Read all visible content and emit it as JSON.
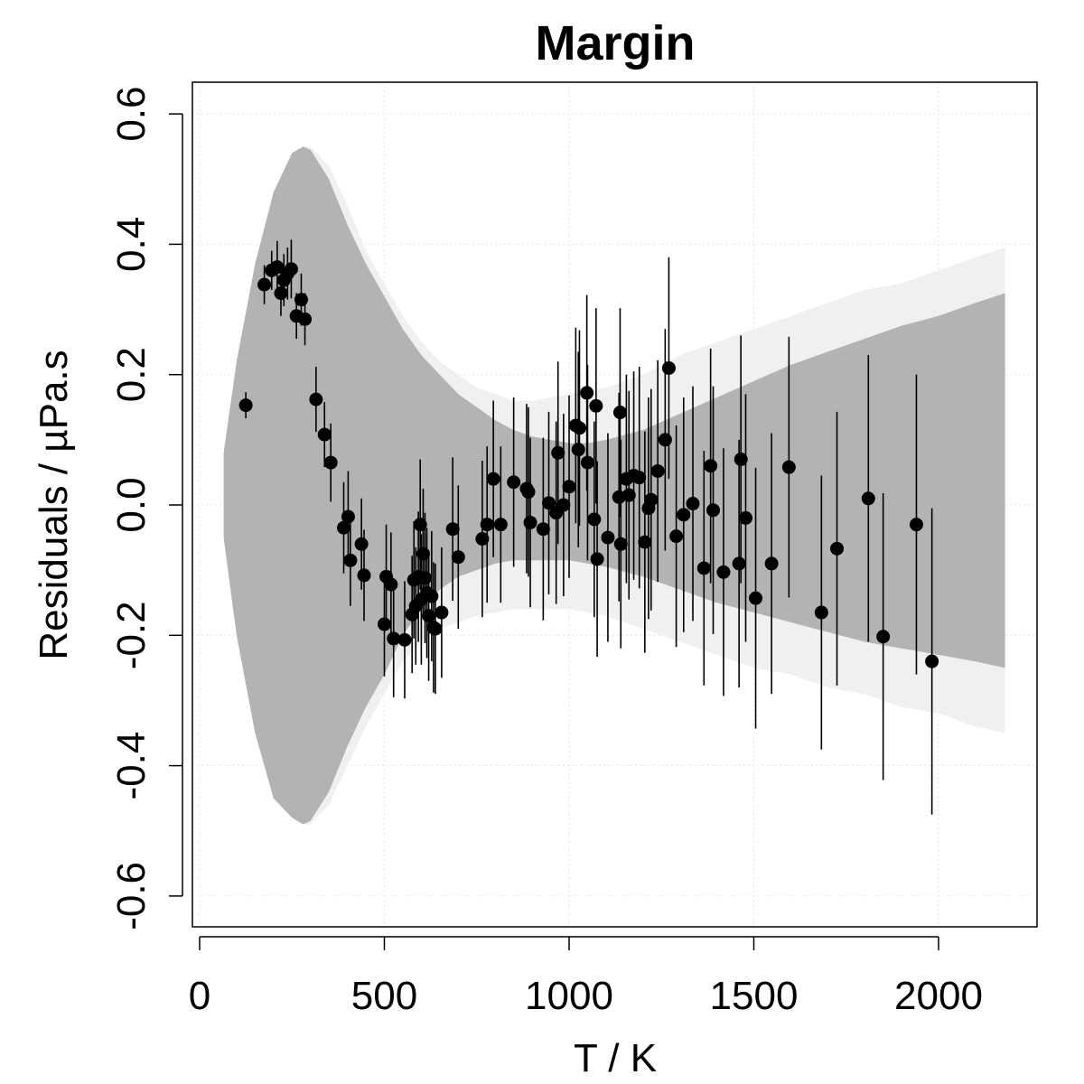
{
  "chart_data": {
    "type": "scatter",
    "title": "Margin",
    "xlabel": "T / K",
    "ylabel": "Residuals / µPa.s",
    "xlim": [
      0,
      2270
    ],
    "ylim": [
      -0.65,
      0.65
    ],
    "xticks": [
      0,
      500,
      1000,
      1500,
      2000
    ],
    "xtick_labels": [
      "0",
      "500",
      "1000",
      "1500",
      "2000"
    ],
    "yticks": [
      -0.6,
      -0.4,
      -0.2,
      0.0,
      0.2,
      0.4,
      0.6
    ],
    "ytick_labels": [
      "-0.6",
      "-0.4",
      "-0.2",
      "0.0",
      "0.2",
      "0.4",
      "0.6"
    ],
    "grid": true,
    "colors": {
      "inner_band": "#b3b3b3",
      "outer_band": "#f0f0f0",
      "points": "#000000",
      "grid": "#e6e6e6"
    },
    "bands": {
      "inner": {
        "x": [
          65,
          100,
          150,
          200,
          250,
          280,
          300,
          350,
          400,
          450,
          500,
          550,
          600,
          650,
          700,
          750,
          800,
          850,
          900,
          950,
          1000,
          1050,
          1100,
          1200,
          1300,
          1400,
          1500,
          1600,
          1700,
          1800,
          1900,
          2000,
          2100,
          2180
        ],
        "upper": [
          0.08,
          0.22,
          0.37,
          0.48,
          0.54,
          0.55,
          0.545,
          0.5,
          0.43,
          0.37,
          0.32,
          0.27,
          0.23,
          0.2,
          0.17,
          0.15,
          0.13,
          0.115,
          0.105,
          0.1,
          0.095,
          0.095,
          0.1,
          0.115,
          0.14,
          0.165,
          0.19,
          0.215,
          0.235,
          0.255,
          0.275,
          0.29,
          0.31,
          0.325
        ],
        "lower": [
          -0.05,
          -0.2,
          -0.35,
          -0.45,
          -0.48,
          -0.49,
          -0.485,
          -0.44,
          -0.37,
          -0.31,
          -0.26,
          -0.2,
          -0.16,
          -0.13,
          -0.11,
          -0.1,
          -0.09,
          -0.085,
          -0.085,
          -0.085,
          -0.085,
          -0.09,
          -0.095,
          -0.11,
          -0.13,
          -0.15,
          -0.165,
          -0.18,
          -0.195,
          -0.21,
          -0.22,
          -0.23,
          -0.24,
          -0.25
        ]
      },
      "outer": {
        "x": [
          65,
          100,
          150,
          200,
          250,
          280,
          300,
          350,
          400,
          450,
          500,
          550,
          600,
          650,
          700,
          750,
          800,
          850,
          900,
          950,
          1000,
          1050,
          1100,
          1200,
          1300,
          1400,
          1500,
          1600,
          1700,
          1800,
          1900,
          2000,
          2100,
          2180
        ],
        "upper": [
          0.08,
          0.22,
          0.37,
          0.48,
          0.54,
          0.55,
          0.55,
          0.52,
          0.46,
          0.39,
          0.34,
          0.29,
          0.25,
          0.22,
          0.2,
          0.18,
          0.17,
          0.16,
          0.16,
          0.165,
          0.17,
          0.175,
          0.18,
          0.2,
          0.23,
          0.25,
          0.27,
          0.29,
          0.31,
          0.33,
          0.34,
          0.36,
          0.38,
          0.395
        ],
        "lower": [
          -0.05,
          -0.2,
          -0.35,
          -0.45,
          -0.48,
          -0.49,
          -0.49,
          -0.46,
          -0.4,
          -0.34,
          -0.29,
          -0.24,
          -0.21,
          -0.19,
          -0.18,
          -0.17,
          -0.165,
          -0.16,
          -0.16,
          -0.16,
          -0.16,
          -0.165,
          -0.17,
          -0.19,
          -0.21,
          -0.23,
          -0.25,
          -0.26,
          -0.28,
          -0.29,
          -0.31,
          -0.32,
          -0.34,
          -0.35
        ]
      }
    },
    "points": [
      {
        "x": 125,
        "y": 0.153,
        "err": 0.02
      },
      {
        "x": 175,
        "y": 0.338,
        "err": 0.03
      },
      {
        "x": 195,
        "y": 0.36,
        "err": 0.03
      },
      {
        "x": 210,
        "y": 0.365,
        "err": 0.04
      },
      {
        "x": 220,
        "y": 0.325,
        "err": 0.035
      },
      {
        "x": 228,
        "y": 0.345,
        "err": 0.04
      },
      {
        "x": 238,
        "y": 0.355,
        "err": 0.04
      },
      {
        "x": 248,
        "y": 0.362,
        "err": 0.045
      },
      {
        "x": 262,
        "y": 0.29,
        "err": 0.035
      },
      {
        "x": 275,
        "y": 0.315,
        "err": 0.04
      },
      {
        "x": 285,
        "y": 0.285,
        "err": 0.04
      },
      {
        "x": 315,
        "y": 0.162,
        "err": 0.05
      },
      {
        "x": 338,
        "y": 0.108,
        "err": 0.05
      },
      {
        "x": 355,
        "y": 0.065,
        "err": 0.06
      },
      {
        "x": 390,
        "y": -0.035,
        "err": 0.07
      },
      {
        "x": 402,
        "y": -0.018,
        "err": 0.07
      },
      {
        "x": 408,
        "y": -0.085,
        "err": 0.07
      },
      {
        "x": 438,
        "y": -0.06,
        "err": 0.07
      },
      {
        "x": 445,
        "y": -0.108,
        "err": 0.07
      },
      {
        "x": 500,
        "y": -0.183,
        "err": 0.08
      },
      {
        "x": 505,
        "y": -0.11,
        "err": 0.08
      },
      {
        "x": 518,
        "y": -0.122,
        "err": 0.08
      },
      {
        "x": 525,
        "y": -0.205,
        "err": 0.09
      },
      {
        "x": 555,
        "y": -0.207,
        "err": 0.09
      },
      {
        "x": 575,
        "y": -0.168,
        "err": 0.09
      },
      {
        "x": 580,
        "y": -0.115,
        "err": 0.09
      },
      {
        "x": 585,
        "y": -0.155,
        "err": 0.09
      },
      {
        "x": 592,
        "y": -0.11,
        "err": 0.1
      },
      {
        "x": 597,
        "y": -0.03,
        "err": 0.1
      },
      {
        "x": 600,
        "y": -0.145,
        "err": 0.1
      },
      {
        "x": 605,
        "y": -0.075,
        "err": 0.1
      },
      {
        "x": 610,
        "y": -0.112,
        "err": 0.1
      },
      {
        "x": 615,
        "y": -0.135,
        "err": 0.1
      },
      {
        "x": 620,
        "y": -0.17,
        "err": 0.1
      },
      {
        "x": 628,
        "y": -0.14,
        "err": 0.1
      },
      {
        "x": 633,
        "y": -0.188,
        "err": 0.1
      },
      {
        "x": 638,
        "y": -0.19,
        "err": 0.1
      },
      {
        "x": 655,
        "y": -0.165,
        "err": 0.1
      },
      {
        "x": 685,
        "y": -0.037,
        "err": 0.11
      },
      {
        "x": 700,
        "y": -0.08,
        "err": 0.11
      },
      {
        "x": 765,
        "y": -0.052,
        "err": 0.12
      },
      {
        "x": 778,
        "y": -0.03,
        "err": 0.12
      },
      {
        "x": 795,
        "y": 0.04,
        "err": 0.12
      },
      {
        "x": 815,
        "y": -0.03,
        "err": 0.12
      },
      {
        "x": 850,
        "y": 0.035,
        "err": 0.13
      },
      {
        "x": 885,
        "y": 0.025,
        "err": 0.13
      },
      {
        "x": 890,
        "y": 0.02,
        "err": 0.13
      },
      {
        "x": 895,
        "y": -0.027,
        "err": 0.13
      },
      {
        "x": 930,
        "y": -0.037,
        "err": 0.14
      },
      {
        "x": 945,
        "y": 0.003,
        "err": 0.14
      },
      {
        "x": 965,
        "y": -0.012,
        "err": 0.14
      },
      {
        "x": 970,
        "y": 0.08,
        "err": 0.14
      },
      {
        "x": 985,
        "y": 0.0,
        "err": 0.14
      },
      {
        "x": 1000,
        "y": 0.028,
        "err": 0.14
      },
      {
        "x": 1018,
        "y": 0.122,
        "err": 0.15
      },
      {
        "x": 1025,
        "y": 0.085,
        "err": 0.15
      },
      {
        "x": 1028,
        "y": 0.118,
        "err": 0.15
      },
      {
        "x": 1048,
        "y": 0.172,
        "err": 0.15
      },
      {
        "x": 1050,
        "y": 0.065,
        "err": 0.15
      },
      {
        "x": 1068,
        "y": -0.022,
        "err": 0.15
      },
      {
        "x": 1073,
        "y": 0.152,
        "err": 0.15
      },
      {
        "x": 1076,
        "y": -0.083,
        "err": 0.15
      },
      {
        "x": 1105,
        "y": -0.05,
        "err": 0.16
      },
      {
        "x": 1135,
        "y": 0.012,
        "err": 0.16
      },
      {
        "x": 1138,
        "y": 0.142,
        "err": 0.16
      },
      {
        "x": 1140,
        "y": -0.06,
        "err": 0.16
      },
      {
        "x": 1155,
        "y": 0.04,
        "err": 0.16
      },
      {
        "x": 1162,
        "y": 0.015,
        "err": 0.16
      },
      {
        "x": 1175,
        "y": 0.045,
        "err": 0.16
      },
      {
        "x": 1190,
        "y": 0.042,
        "err": 0.17
      },
      {
        "x": 1205,
        "y": -0.057,
        "err": 0.17
      },
      {
        "x": 1215,
        "y": -0.005,
        "err": 0.17
      },
      {
        "x": 1222,
        "y": 0.008,
        "err": 0.17
      },
      {
        "x": 1240,
        "y": 0.052,
        "err": 0.17
      },
      {
        "x": 1260,
        "y": 0.1,
        "err": 0.17
      },
      {
        "x": 1270,
        "y": 0.21,
        "err": 0.17
      },
      {
        "x": 1290,
        "y": -0.048,
        "err": 0.17
      },
      {
        "x": 1310,
        "y": -0.015,
        "err": 0.18
      },
      {
        "x": 1335,
        "y": 0.002,
        "err": 0.18
      },
      {
        "x": 1365,
        "y": -0.097,
        "err": 0.18
      },
      {
        "x": 1383,
        "y": 0.06,
        "err": 0.18
      },
      {
        "x": 1390,
        "y": -0.008,
        "err": 0.19
      },
      {
        "x": 1418,
        "y": -0.103,
        "err": 0.19
      },
      {
        "x": 1460,
        "y": -0.09,
        "err": 0.19
      },
      {
        "x": 1465,
        "y": 0.07,
        "err": 0.19
      },
      {
        "x": 1478,
        "y": -0.02,
        "err": 0.19
      },
      {
        "x": 1505,
        "y": -0.143,
        "err": 0.2
      },
      {
        "x": 1548,
        "y": -0.09,
        "err": 0.2
      },
      {
        "x": 1595,
        "y": 0.058,
        "err": 0.2
      },
      {
        "x": 1683,
        "y": -0.165,
        "err": 0.21
      },
      {
        "x": 1725,
        "y": -0.067,
        "err": 0.21
      },
      {
        "x": 1810,
        "y": 0.01,
        "err": 0.22
      },
      {
        "x": 1850,
        "y": -0.202,
        "err": 0.22
      },
      {
        "x": 1940,
        "y": -0.03,
        "err": 0.23
      },
      {
        "x": 1982,
        "y": -0.24,
        "err": 0.235
      }
    ]
  }
}
